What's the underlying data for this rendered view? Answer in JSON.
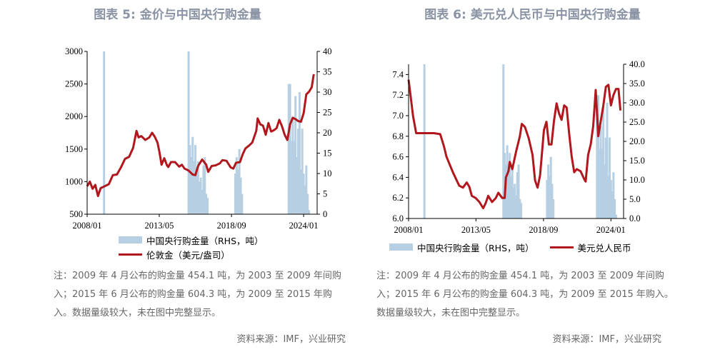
{
  "charts": [
    {
      "title": "图表 5:  金价与中国央行购金量",
      "legend": {
        "bar_label": "中国央行购金量（RHS，吨）",
        "line_label": "伦敦金（美元/盎司）"
      },
      "note": "注：2009 年 4 月公布的购金量 454.1 吨，为 2003 至 2009 年间购入；2015 年 6 月公布的购金量 604.3 吨，为 2009 至 2015 年购入。数据量级较大，未在图中完整显示。",
      "source": "资料来源：IMF，兴业研究",
      "colors": {
        "bar": "#b7cfe2",
        "line": "#b0181d"
      }
    },
    {
      "title": "图表 6:  美元兑人民币与中国央行购金量",
      "legend": {
        "bar_label": "中国央行购金量（RHS，吨）",
        "line_label": "美元兑人民币"
      },
      "note": "注：2009 年 4 月公布的购金量 454.1 吨，为 2003 至 2009 年间购入；2015 年 6 月公布的购金量 604.3 吨，为 2009 至 2015 年购入。数据量级较大，未在图中完整显示。",
      "source": "资料来源：IMF，兴业研究",
      "colors": {
        "bar": "#b7cfe2",
        "line": "#b0181d"
      }
    }
  ],
  "chart_data": [
    {
      "type": "bar+line",
      "x_range": [
        2008.0,
        2025.0
      ],
      "x_ticks": [
        {
          "label": "2008/01",
          "x": 2008.0
        },
        {
          "label": "2013/05",
          "x": 2013.33
        },
        {
          "label": "2018/09",
          "x": 2018.67
        },
        {
          "label": "2024/01",
          "x": 2024.0
        }
      ],
      "y_left": {
        "ticks": [
          "500",
          "1000",
          "1500",
          "2000",
          "2500",
          "3000"
        ],
        "range": [
          500,
          3000
        ]
      },
      "y_right": {
        "ticks": [
          "0",
          "5",
          "10",
          "15",
          "20",
          "25",
          "30",
          "35",
          "40"
        ],
        "range": [
          0,
          40
        ]
      },
      "series": [
        {
          "kind": "line",
          "axis": "left",
          "points": [
            [
              2008.0,
              930
            ],
            [
              2008.2,
              1000
            ],
            [
              2008.4,
              890
            ],
            [
              2008.6,
              950
            ],
            [
              2008.8,
              780
            ],
            [
              2009.0,
              900
            ],
            [
              2009.3,
              930
            ],
            [
              2009.6,
              960
            ],
            [
              2009.9,
              1100
            ],
            [
              2010.2,
              1110
            ],
            [
              2010.5,
              1220
            ],
            [
              2010.8,
              1350
            ],
            [
              2011.1,
              1380
            ],
            [
              2011.4,
              1520
            ],
            [
              2011.65,
              1780
            ],
            [
              2011.8,
              1680
            ],
            [
              2012.0,
              1700
            ],
            [
              2012.3,
              1640
            ],
            [
              2012.6,
              1680
            ],
            [
              2012.8,
              1750
            ],
            [
              2013.0,
              1690
            ],
            [
              2013.2,
              1600
            ],
            [
              2013.35,
              1450
            ],
            [
              2013.5,
              1260
            ],
            [
              2013.7,
              1360
            ],
            [
              2013.9,
              1250
            ],
            [
              2014.0,
              1225
            ],
            [
              2014.2,
              1300
            ],
            [
              2014.5,
              1300
            ],
            [
              2014.8,
              1230
            ],
            [
              2015.0,
              1260
            ],
            [
              2015.2,
              1200
            ],
            [
              2015.5,
              1170
            ],
            [
              2015.8,
              1110
            ],
            [
              2016.0,
              1100
            ],
            [
              2016.2,
              1240
            ],
            [
              2016.5,
              1340
            ],
            [
              2016.8,
              1260
            ],
            [
              2016.95,
              1150
            ],
            [
              2017.2,
              1240
            ],
            [
              2017.5,
              1250
            ],
            [
              2017.8,
              1280
            ],
            [
              2018.0,
              1330
            ],
            [
              2018.3,
              1320
            ],
            [
              2018.6,
              1220
            ],
            [
              2018.8,
              1200
            ],
            [
              2019.0,
              1290
            ],
            [
              2019.3,
              1300
            ],
            [
              2019.5,
              1420
            ],
            [
              2019.7,
              1510
            ],
            [
              2020.0,
              1560
            ],
            [
              2020.2,
              1600
            ],
            [
              2020.5,
              1780
            ],
            [
              2020.6,
              1970
            ],
            [
              2020.8,
              1880
            ],
            [
              2021.0,
              1860
            ],
            [
              2021.2,
              1720
            ],
            [
              2021.4,
              1900
            ],
            [
              2021.6,
              1770
            ],
            [
              2021.8,
              1790
            ],
            [
              2022.0,
              1820
            ],
            [
              2022.2,
              1950
            ],
            [
              2022.4,
              1850
            ],
            [
              2022.6,
              1720
            ],
            [
              2022.8,
              1640
            ],
            [
              2023.0,
              1880
            ],
            [
              2023.2,
              1980
            ],
            [
              2023.4,
              1960
            ],
            [
              2023.6,
              1930
            ],
            [
              2023.8,
              1920
            ],
            [
              2024.0,
              2050
            ],
            [
              2024.2,
              2340
            ],
            [
              2024.4,
              2380
            ],
            [
              2024.6,
              2450
            ],
            [
              2024.75,
              2650
            ]
          ]
        },
        {
          "kind": "bar",
          "axis": "right",
          "points": [
            [
              2009.25,
              40
            ],
            [
              2015.5,
              40
            ],
            [
              2015.6,
              17
            ],
            [
              2015.7,
              14
            ],
            [
              2015.8,
              19
            ],
            [
              2015.9,
              13
            ],
            [
              2016.0,
              17
            ],
            [
              2016.1,
              11
            ],
            [
              2016.2,
              13
            ],
            [
              2016.3,
              8
            ],
            [
              2016.4,
              9
            ],
            [
              2016.5,
              6
            ],
            [
              2016.6,
              12
            ],
            [
              2016.7,
              14
            ],
            [
              2016.8,
              5
            ],
            [
              2016.9,
              4
            ],
            [
              2018.95,
              10
            ],
            [
              2019.05,
              14
            ],
            [
              2019.15,
              11
            ],
            [
              2019.25,
              16
            ],
            [
              2019.35,
              9
            ],
            [
              2019.45,
              5
            ],
            [
              2022.9,
              32
            ],
            [
              2023.0,
              32
            ],
            [
              2023.1,
              18
            ],
            [
              2023.2,
              24
            ],
            [
              2023.3,
              18
            ],
            [
              2023.4,
              29
            ],
            [
              2023.5,
              14
            ],
            [
              2023.6,
              21
            ],
            [
              2023.7,
              30
            ],
            [
              2023.8,
              11
            ],
            [
              2023.9,
              21
            ],
            [
              2024.0,
              10
            ],
            [
              2024.1,
              7
            ],
            [
              2024.2,
              12
            ],
            [
              2024.3,
              5
            ],
            [
              2024.4,
              1
            ]
          ]
        }
      ]
    },
    {
      "type": "bar+line",
      "x_range": [
        2008.0,
        2025.0
      ],
      "x_ticks": [
        {
          "label": "2008/01",
          "x": 2008.0
        },
        {
          "label": "2013/05",
          "x": 2013.33
        },
        {
          "label": "2018/09",
          "x": 2018.67
        },
        {
          "label": "2024/01",
          "x": 2024.0
        }
      ],
      "y_left": {
        "ticks": [
          "6.0",
          "6.2",
          "6.4",
          "6.6",
          "6.8",
          "7.0",
          "7.2",
          "7.4"
        ],
        "range": [
          6.0,
          7.5
        ]
      },
      "y_right": {
        "ticks": [
          "0.0",
          "5.0",
          "10.0",
          "15.0",
          "20.0",
          "25.0",
          "30.0",
          "35.0",
          "40.0"
        ],
        "range": [
          0,
          40
        ]
      },
      "series": [
        {
          "kind": "line",
          "axis": "left",
          "points": [
            [
              2008.0,
              7.35
            ],
            [
              2008.15,
              7.2
            ],
            [
              2008.35,
              7.0
            ],
            [
              2008.6,
              6.83
            ],
            [
              2009.0,
              6.83
            ],
            [
              2009.5,
              6.83
            ],
            [
              2010.0,
              6.83
            ],
            [
              2010.5,
              6.82
            ],
            [
              2010.8,
              6.7
            ],
            [
              2011.0,
              6.6
            ],
            [
              2011.5,
              6.45
            ],
            [
              2012.0,
              6.32
            ],
            [
              2012.3,
              6.3
            ],
            [
              2012.6,
              6.35
            ],
            [
              2012.8,
              6.31
            ],
            [
              2013.0,
              6.22
            ],
            [
              2013.3,
              6.2
            ],
            [
              2013.6,
              6.16
            ],
            [
              2013.9,
              6.1
            ],
            [
              2014.1,
              6.15
            ],
            [
              2014.3,
              6.22
            ],
            [
              2014.6,
              6.16
            ],
            [
              2014.9,
              6.2
            ],
            [
              2015.1,
              6.25
            ],
            [
              2015.4,
              6.2
            ],
            [
              2015.6,
              6.2
            ],
            [
              2015.7,
              6.4
            ],
            [
              2015.9,
              6.46
            ],
            [
              2016.0,
              6.55
            ],
            [
              2016.2,
              6.48
            ],
            [
              2016.5,
              6.65
            ],
            [
              2016.8,
              6.8
            ],
            [
              2016.95,
              6.92
            ],
            [
              2017.2,
              6.89
            ],
            [
              2017.5,
              6.78
            ],
            [
              2017.8,
              6.62
            ],
            [
              2018.0,
              6.37
            ],
            [
              2018.2,
              6.3
            ],
            [
              2018.4,
              6.42
            ],
            [
              2018.7,
              6.86
            ],
            [
              2018.9,
              6.94
            ],
            [
              2019.1,
              6.72
            ],
            [
              2019.3,
              6.72
            ],
            [
              2019.5,
              6.95
            ],
            [
              2019.7,
              7.12
            ],
            [
              2019.9,
              7.02
            ],
            [
              2020.1,
              6.96
            ],
            [
              2020.3,
              7.1
            ],
            [
              2020.5,
              7.08
            ],
            [
              2020.7,
              6.82
            ],
            [
              2020.9,
              6.6
            ],
            [
              2021.1,
              6.45
            ],
            [
              2021.3,
              6.48
            ],
            [
              2021.6,
              6.46
            ],
            [
              2021.9,
              6.38
            ],
            [
              2022.0,
              6.36
            ],
            [
              2022.2,
              6.62
            ],
            [
              2022.4,
              6.72
            ],
            [
              2022.6,
              6.9
            ],
            [
              2022.8,
              7.25
            ],
            [
              2023.0,
              6.8
            ],
            [
              2023.2,
              6.95
            ],
            [
              2023.4,
              7.1
            ],
            [
              2023.6,
              7.28
            ],
            [
              2023.8,
              7.3
            ],
            [
              2024.0,
              7.1
            ],
            [
              2024.2,
              7.2
            ],
            [
              2024.4,
              7.26
            ],
            [
              2024.6,
              7.26
            ],
            [
              2024.75,
              7.05
            ]
          ]
        },
        {
          "kind": "bar",
          "axis": "right",
          "points": [
            [
              2009.25,
              40
            ],
            [
              2015.5,
              40
            ],
            [
              2015.6,
              17
            ],
            [
              2015.7,
              14
            ],
            [
              2015.8,
              19
            ],
            [
              2015.9,
              13
            ],
            [
              2016.0,
              17
            ],
            [
              2016.1,
              11
            ],
            [
              2016.2,
              13
            ],
            [
              2016.3,
              8
            ],
            [
              2016.4,
              9
            ],
            [
              2016.5,
              6
            ],
            [
              2016.6,
              12
            ],
            [
              2016.7,
              14
            ],
            [
              2016.8,
              5
            ],
            [
              2016.9,
              4
            ],
            [
              2018.95,
              10
            ],
            [
              2019.05,
              14
            ],
            [
              2019.15,
              11
            ],
            [
              2019.25,
              16
            ],
            [
              2019.35,
              9
            ],
            [
              2019.45,
              5
            ],
            [
              2022.9,
              32
            ],
            [
              2023.0,
              32
            ],
            [
              2023.1,
              18
            ],
            [
              2023.2,
              24
            ],
            [
              2023.3,
              18
            ],
            [
              2023.4,
              29
            ],
            [
              2023.5,
              14
            ],
            [
              2023.6,
              21
            ],
            [
              2023.7,
              30
            ],
            [
              2023.8,
              11
            ],
            [
              2023.9,
              21
            ],
            [
              2024.0,
              10
            ],
            [
              2024.1,
              7
            ],
            [
              2024.2,
              12
            ],
            [
              2024.3,
              5
            ],
            [
              2024.4,
              1
            ]
          ]
        }
      ]
    }
  ]
}
